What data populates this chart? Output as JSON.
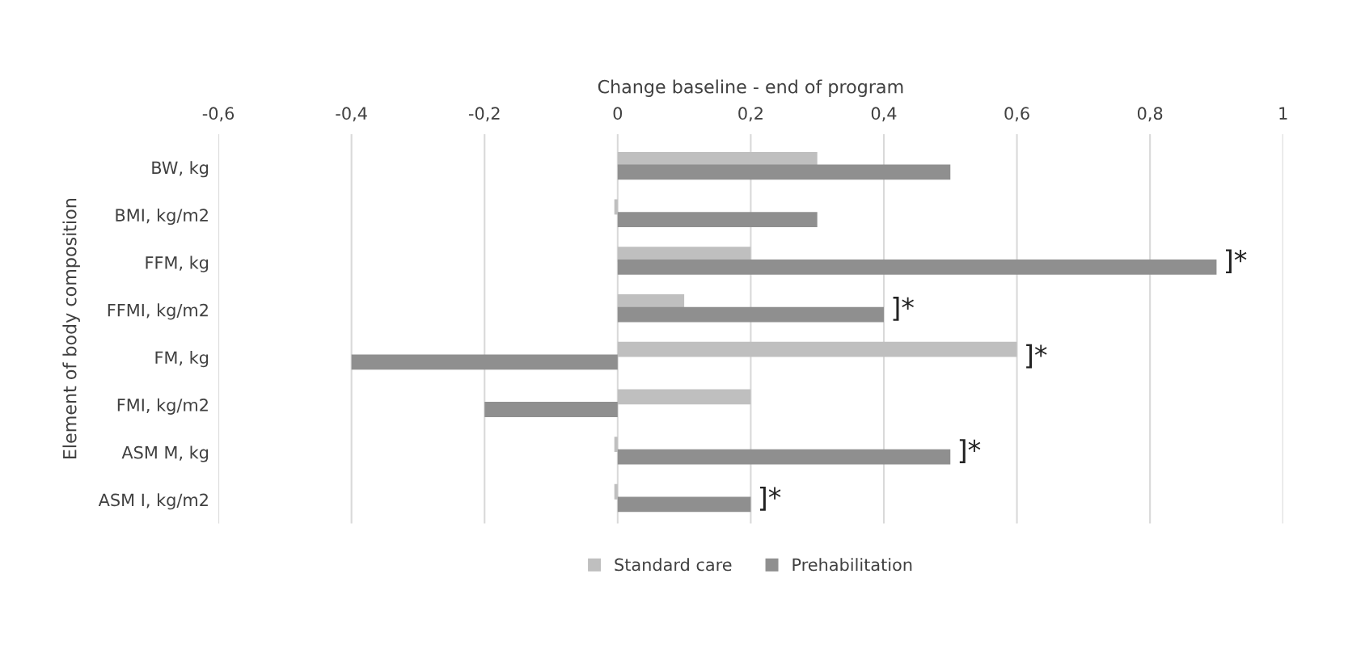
{
  "chart_data": {
    "type": "bar",
    "orientation": "horizontal",
    "xlabel": "Change baseline - end of program",
    "ylabel": "Element of body composition",
    "categories": [
      "BW, kg",
      "BMI, kg/m2",
      "FFM, kg",
      "FFMI, kg/m2",
      "FM, kg",
      "FMI, kg/m2",
      "ASM M, kg",
      "ASM I, kg/m2"
    ],
    "series": [
      {
        "name": "Standard care",
        "color": "#bfbfbf",
        "values": [
          0.3,
          -0.005,
          0.2,
          0.1,
          0.6,
          0.2,
          -0.005,
          -0.005
        ]
      },
      {
        "name": "Prehabilitation",
        "color": "#8f8f8f",
        "values": [
          0.5,
          0.3,
          0.9,
          0.4,
          -0.4,
          -0.2,
          0.5,
          0.2
        ]
      }
    ],
    "xlim": [
      -0.6,
      1
    ],
    "xticks": [
      {
        "value": -0.6,
        "label": "-0,6"
      },
      {
        "value": -0.4,
        "label": "-0,4"
      },
      {
        "value": -0.2,
        "label": "-0,2"
      },
      0,
      {
        "value": 0.2,
        "label": "0,2"
      },
      {
        "value": 0.4,
        "label": "0,4"
      },
      {
        "value": 0.6,
        "label": "0,6"
      },
      {
        "value": 0.8,
        "label": "0,8"
      },
      1
    ],
    "grid": "x",
    "legend": "bottom",
    "annotations": [
      {
        "text": "]*",
        "x": 0.9,
        "y": "FFM, kg"
      },
      {
        "text": "]*",
        "x": 0.4,
        "y": "FFMI, kg/m2"
      },
      {
        "text": "]*",
        "x": 0.6,
        "y": "FM, kg"
      },
      {
        "text": "]*",
        "x": 0.5,
        "y": "ASM M, kg"
      },
      {
        "text": "]*",
        "x": 0.2,
        "y": "ASM I, kg/m2"
      }
    ]
  }
}
